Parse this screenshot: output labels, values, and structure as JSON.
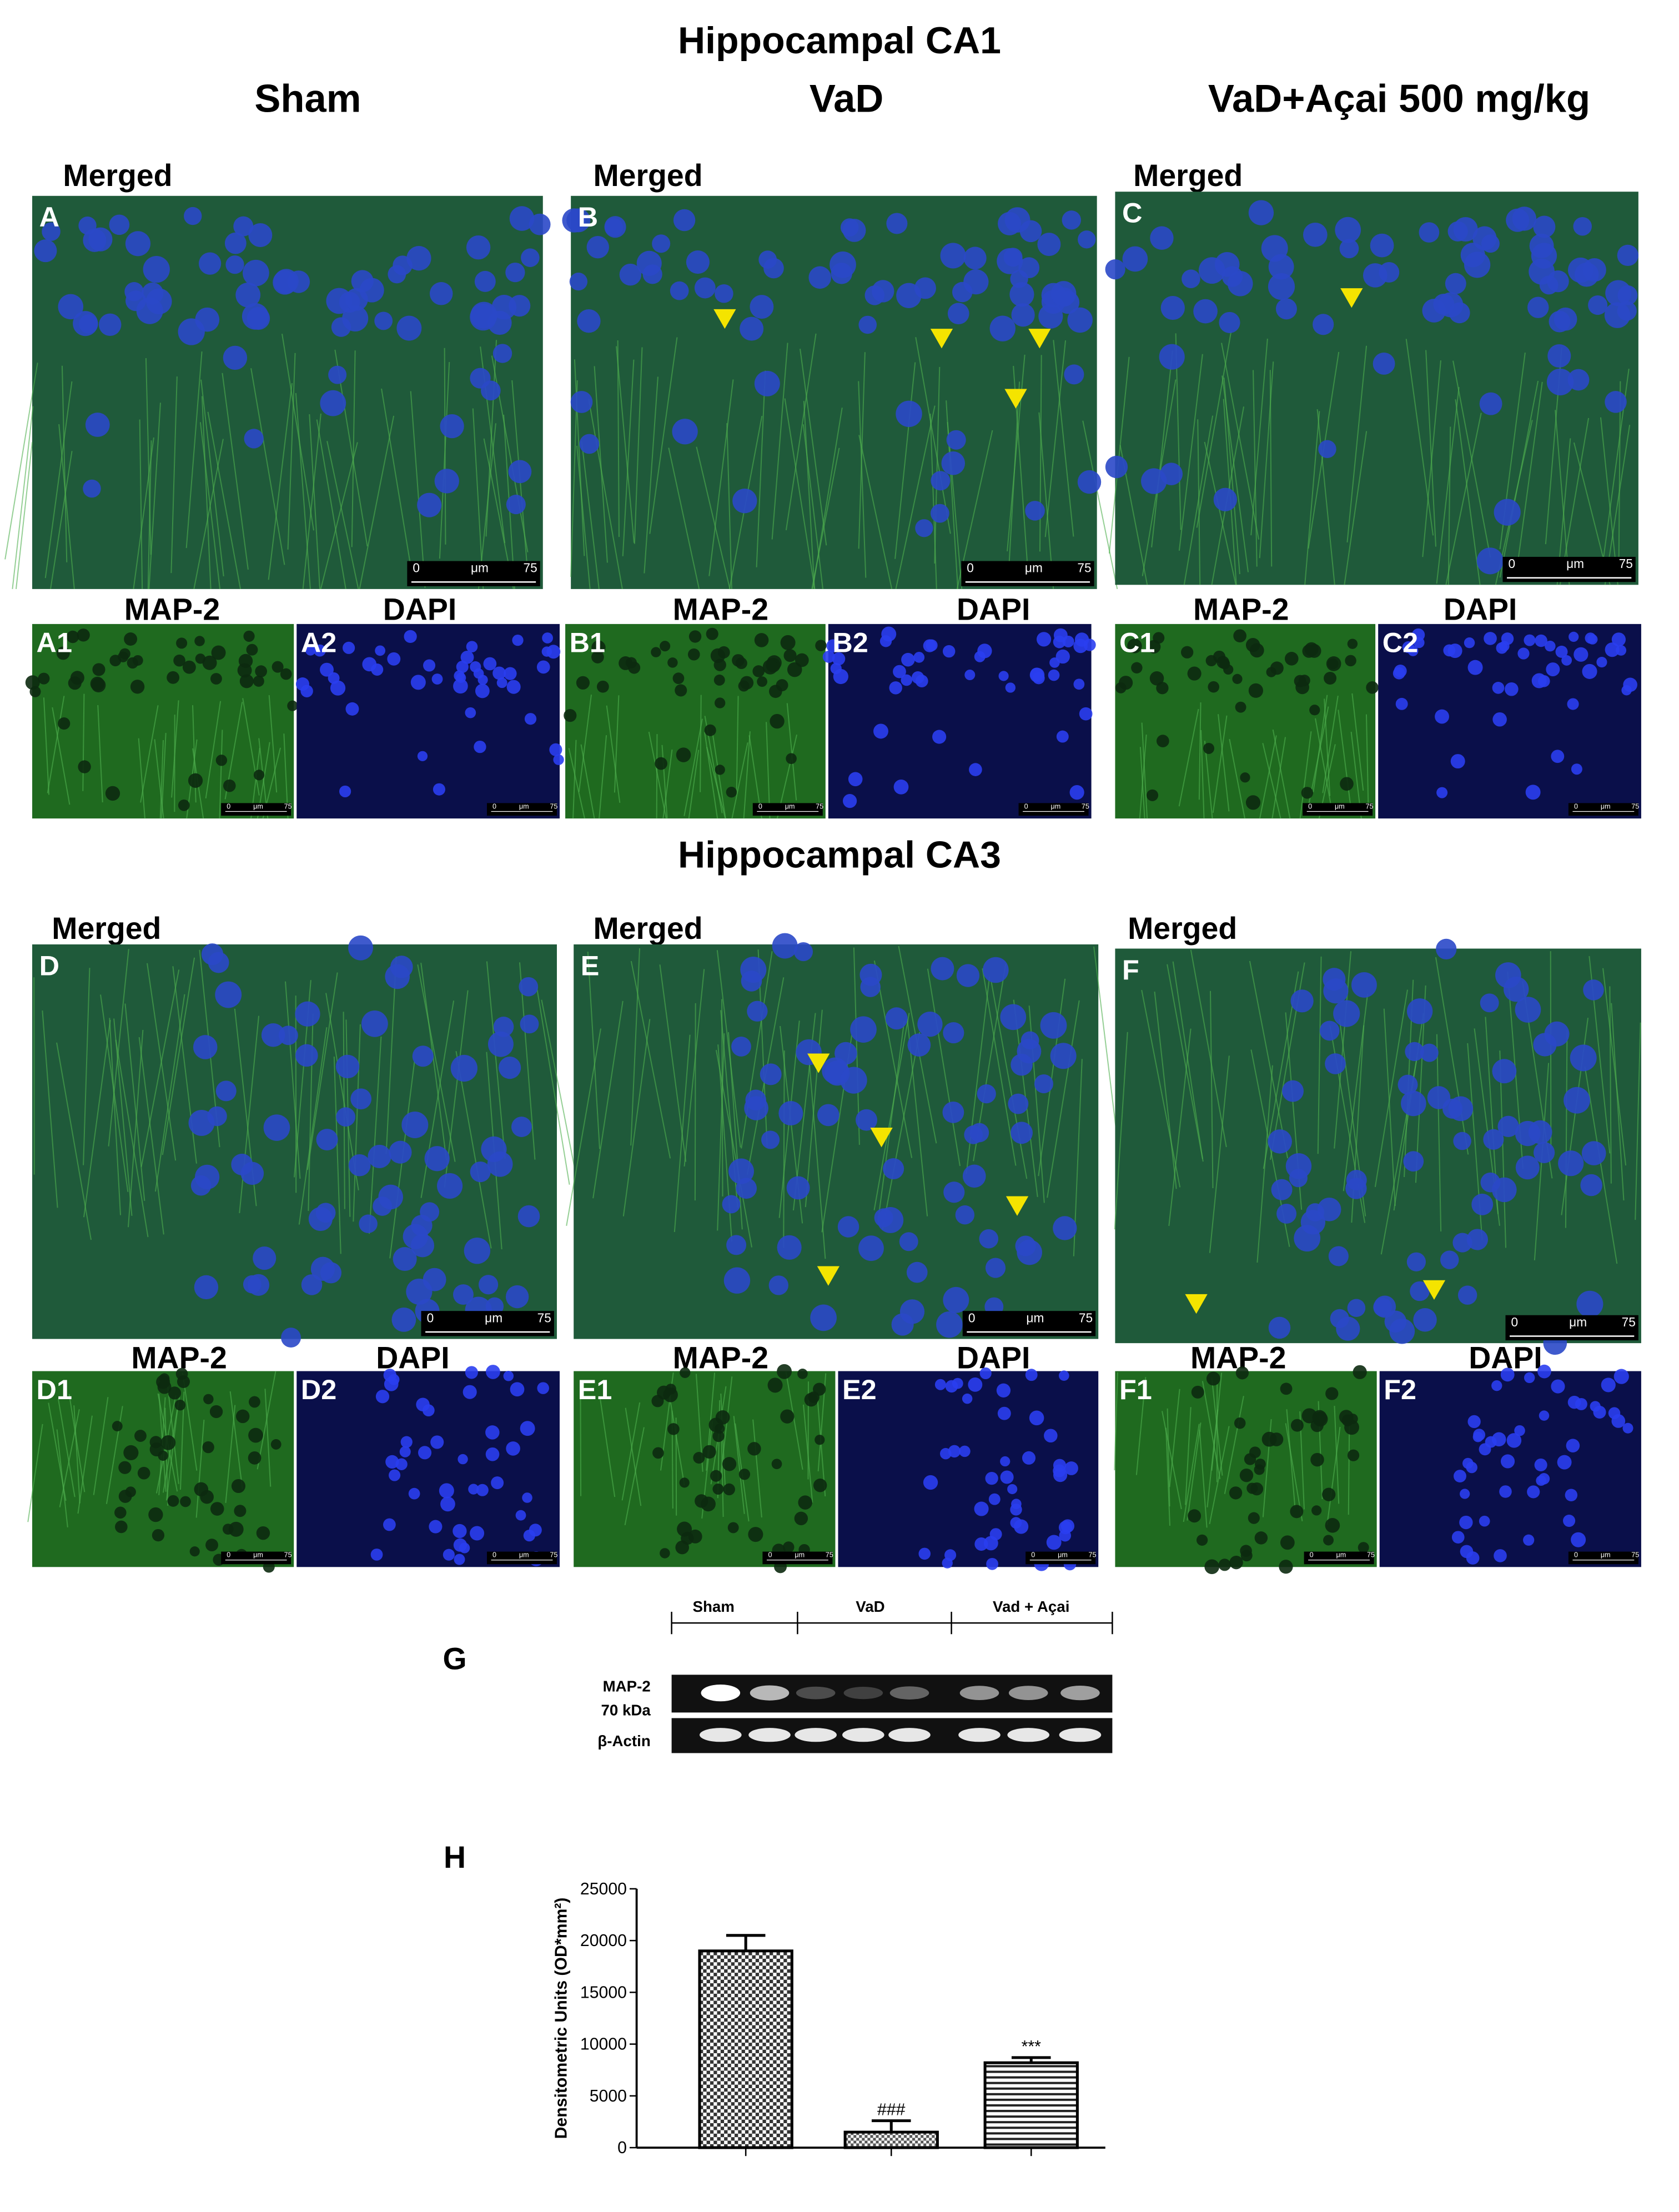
{
  "figure": {
    "sections": [
      {
        "title": "Hippocampal CA1",
        "columns": [
          {
            "heading": "Sham",
            "merged_label": "Merged",
            "panel": "A",
            "sub": [
              {
                "label": "MAP-2",
                "panel": "A1"
              },
              {
                "label": "DAPI",
                "panel": "A2"
              }
            ]
          },
          {
            "heading": "VaD",
            "merged_label": "Merged",
            "panel": "B",
            "sub": [
              {
                "label": "MAP-2",
                "panel": "B1"
              },
              {
                "label": "DAPI",
                "panel": "B2"
              }
            ]
          },
          {
            "heading": "VaD+Açai 500 mg/kg",
            "merged_label": "Merged",
            "panel": "C",
            "sub": [
              {
                "label": "MAP-2",
                "panel": "C1"
              },
              {
                "label": "DAPI",
                "panel": "C2"
              }
            ]
          }
        ]
      },
      {
        "title": "Hippocampal CA3",
        "columns": [
          {
            "merged_label": "Merged",
            "panel": "D",
            "sub": [
              {
                "label": "MAP-2",
                "panel": "D1"
              },
              {
                "label": "DAPI",
                "panel": "D2"
              }
            ]
          },
          {
            "merged_label": "Merged",
            "panel": "E",
            "sub": [
              {
                "label": "MAP-2",
                "panel": "E1"
              },
              {
                "label": "DAPI",
                "panel": "E2"
              }
            ]
          },
          {
            "merged_label": "Merged",
            "panel": "F",
            "sub": [
              {
                "label": "MAP-2",
                "panel": "F1"
              },
              {
                "label": "DAPI",
                "panel": "F2"
              }
            ]
          }
        ]
      }
    ],
    "scale_bar": {
      "start": "0",
      "unit": "μm",
      "end": "75"
    },
    "blot": {
      "label": "G",
      "groups": [
        "Sham",
        "VaD",
        "Vad + Açai"
      ],
      "rows": [
        "MAP-2",
        "70 kDa",
        "β-Actin"
      ]
    },
    "chart_label": "H"
  },
  "chart_data": {
    "type": "bar",
    "ylabel": "Densitometric Units (OD*mm²)",
    "categories": [
      null,
      null,
      null
    ],
    "values": [
      19000,
      1500,
      8200
    ],
    "errors": [
      1500,
      1100,
      500
    ],
    "annotations": [
      null,
      "###",
      "***"
    ],
    "ylim": [
      0,
      25000
    ],
    "yticks": [
      0,
      5000,
      10000,
      15000,
      20000,
      25000
    ]
  }
}
